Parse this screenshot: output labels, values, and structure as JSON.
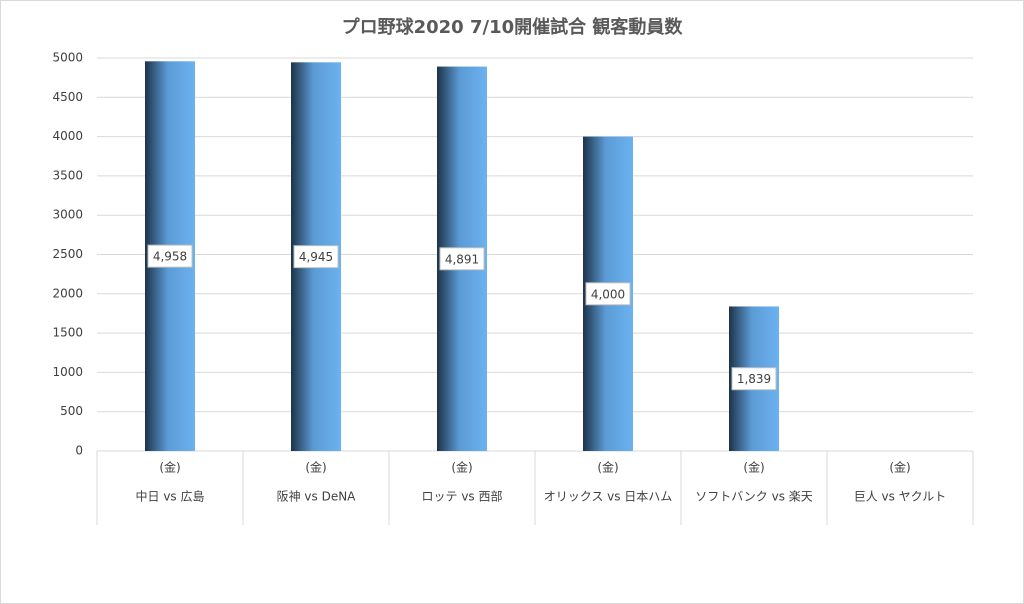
{
  "chart_data": {
    "type": "bar",
    "title": "プロ野球2020 7/10開催試合 観客動員数",
    "groups": [
      "(金)",
      "(金)",
      "(金)",
      "(金)",
      "(金)",
      "(金)"
    ],
    "categories": [
      "中日 vs 広島",
      "阪神 vs DeNA",
      "ロッテ vs 西部",
      "オリックス vs 日本ハム",
      "ソフトバンク vs 楽天",
      "巨人 vs ヤクルト"
    ],
    "values": [
      4958,
      4945,
      4891,
      4000,
      1839,
      null
    ],
    "value_labels": [
      "4,958",
      "4,945",
      "4,891",
      "4,000",
      "1,839",
      null
    ],
    "color": "#5b9bd5",
    "ylim": [
      0,
      5000
    ],
    "yticks": [
      0,
      500,
      1000,
      1500,
      2000,
      2500,
      3000,
      3500,
      4000,
      4500,
      5000
    ],
    "grid": true
  }
}
